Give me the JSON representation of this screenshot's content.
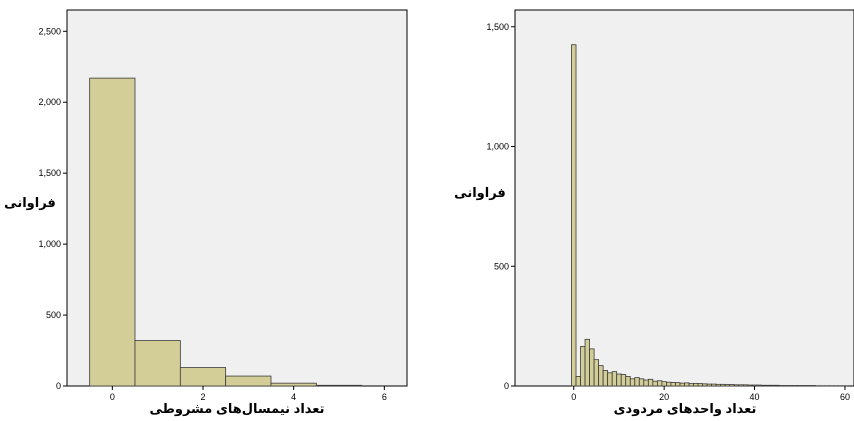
{
  "chart_data": [
    {
      "type": "bar",
      "title": "",
      "xlabel": "تعداد نیمسال‌های مشروطی",
      "ylabel": "فراوانی",
      "bin_width": 1,
      "x": [
        0,
        1,
        2,
        3,
        4,
        5
      ],
      "values": [
        2170,
        320,
        130,
        70,
        20,
        5
      ],
      "xlim": [
        -1,
        6.5
      ],
      "ylim": [
        0,
        2650
      ],
      "xticks": [
        0,
        2,
        4,
        6
      ],
      "yticks": [
        0,
        500,
        1000,
        1500,
        2000,
        2500
      ],
      "ytick_labels": [
        "0",
        "500",
        "1,000",
        "1,500",
        "2,000",
        "2,500"
      ],
      "grid": false,
      "colors": {
        "bar_fill": "#D3CE98",
        "bar_stroke": "#3a3a3a",
        "plot_bg": "#F0F0F0"
      }
    },
    {
      "type": "bar",
      "title": "",
      "xlabel": "تعداد واحدهای مردودی",
      "ylabel": "فراوانی",
      "bin_width": 1,
      "x": [
        0,
        1,
        2,
        3,
        4,
        5,
        6,
        7,
        8,
        9,
        10,
        11,
        12,
        13,
        14,
        15,
        16,
        17,
        18,
        19,
        20,
        21,
        22,
        23,
        24,
        25,
        26,
        27,
        28,
        29,
        30,
        31,
        32,
        33,
        34,
        35,
        36,
        37,
        38,
        39,
        40,
        41,
        42,
        43,
        44,
        45,
        46,
        47,
        48,
        49,
        50,
        51,
        52,
        53,
        54,
        55,
        56,
        57,
        58,
        59,
        60
      ],
      "values": [
        1425,
        40,
        165,
        195,
        155,
        110,
        85,
        65,
        55,
        60,
        50,
        48,
        40,
        30,
        35,
        30,
        25,
        28,
        20,
        22,
        18,
        16,
        15,
        14,
        12,
        13,
        10,
        11,
        10,
        9,
        8,
        8,
        7,
        7,
        6,
        6,
        5,
        5,
        5,
        4,
        4,
        4,
        3,
        3,
        3,
        3,
        2,
        2,
        2,
        2,
        2,
        2,
        2,
        2,
        1,
        1,
        1,
        1,
        1,
        1,
        1
      ],
      "xlim": [
        -13,
        62
      ],
      "ylim": [
        0,
        1570
      ],
      "xticks": [
        0,
        20,
        40,
        60
      ],
      "yticks": [
        0,
        500,
        1000,
        1500
      ],
      "ytick_labels": [
        "0",
        "500",
        "1,000",
        "1,500"
      ],
      "grid": false,
      "colors": {
        "bar_fill": "#D3CE98",
        "bar_stroke": "#3a3a3a",
        "plot_bg": "#F0F0F0"
      }
    }
  ]
}
